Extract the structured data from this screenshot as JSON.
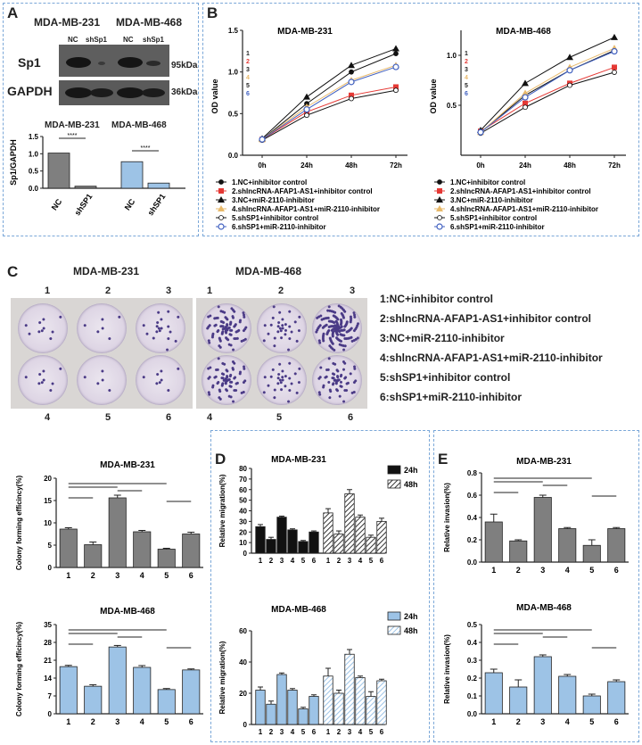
{
  "panels": {
    "A": "A",
    "B": "B",
    "C": "C",
    "D": "D",
    "E": "E"
  },
  "blot": {
    "cell_lines": [
      "MDA-MB-231",
      "MDA-MB-468"
    ],
    "lane_labels": [
      "NC",
      "shSp1",
      "NC",
      "shSp1"
    ],
    "rows": [
      "Sp1",
      "GAPDH"
    ],
    "sizes": [
      "95kDa",
      "36kDa"
    ]
  },
  "chart_data": [
    {
      "id": "a_bar",
      "type": "bar",
      "ylabel": "Sp1/GAPDH",
      "groups": [
        "MDA-MB-231",
        "MDA-MB-468"
      ],
      "categories": [
        "NC",
        "shSP1",
        "NC",
        "shSP1"
      ],
      "values": [
        1.02,
        0.06,
        0.77,
        0.15
      ],
      "ylim": [
        0,
        1.5
      ],
      "yticks": [
        "0.0",
        "0.5",
        "1.0",
        "1.5"
      ],
      "colors": [
        "#7f7f7f",
        "#7f7f7f",
        "#9dc3e6",
        "#9dc3e6"
      ],
      "sig": [
        "****",
        "****"
      ]
    },
    {
      "id": "b_231",
      "type": "line",
      "title": "MDA-MB-231",
      "ylabel": "OD value",
      "x": [
        "0h",
        "24h",
        "48h",
        "72h"
      ],
      "ylim": [
        0,
        1.5
      ],
      "yticks": [
        "0.0",
        "0.5",
        "1.0",
        "1.5"
      ],
      "series": [
        {
          "name": "1",
          "values": [
            0.19,
            0.62,
            1.0,
            1.22
          ]
        },
        {
          "name": "2",
          "values": [
            0.19,
            0.52,
            0.72,
            0.82
          ]
        },
        {
          "name": "3",
          "values": [
            0.2,
            0.7,
            1.08,
            1.28
          ]
        },
        {
          "name": "4",
          "values": [
            0.19,
            0.58,
            0.9,
            1.08
          ]
        },
        {
          "name": "5",
          "values": [
            0.18,
            0.48,
            0.68,
            0.78
          ]
        },
        {
          "name": "6",
          "values": [
            0.19,
            0.55,
            0.88,
            1.06
          ]
        }
      ]
    },
    {
      "id": "b_468",
      "type": "line",
      "title": "MDA-MB-468",
      "ylabel": "OD value",
      "x": [
        "0h",
        "24h",
        "48h",
        "72h"
      ],
      "ylim": [
        0,
        1.25
      ],
      "yticks": [
        "0.5",
        "1.0"
      ],
      "series": [
        {
          "name": "1",
          "values": [
            0.23,
            0.6,
            0.85,
            1.05
          ]
        },
        {
          "name": "2",
          "values": [
            0.24,
            0.52,
            0.72,
            0.88
          ]
        },
        {
          "name": "3",
          "values": [
            0.25,
            0.72,
            0.98,
            1.18
          ]
        },
        {
          "name": "4",
          "values": [
            0.23,
            0.62,
            0.88,
            1.07
          ]
        },
        {
          "name": "5",
          "values": [
            0.22,
            0.48,
            0.7,
            0.83
          ]
        },
        {
          "name": "6",
          "values": [
            0.23,
            0.58,
            0.85,
            1.04
          ]
        }
      ]
    },
    {
      "id": "c_231",
      "type": "bar",
      "title": "MDA-MB-231",
      "ylabel": "Colony forming efficincy(%)",
      "categories": [
        "1",
        "2",
        "3",
        "4",
        "5",
        "6"
      ],
      "values": [
        8.6,
        5.1,
        15.6,
        8.0,
        4.1,
        7.5
      ],
      "errors": [
        0.3,
        0.6,
        0.6,
        0.3,
        0.2,
        0.4
      ],
      "ylim": [
        0,
        20
      ],
      "yticks": [
        "0",
        "5",
        "10",
        "15",
        "20"
      ]
    },
    {
      "id": "c_468",
      "type": "bar",
      "title": "MDA-MB-468",
      "ylabel": "Colony forming efficincy(%)",
      "categories": [
        "1",
        "2",
        "3",
        "4",
        "5",
        "6"
      ],
      "values": [
        18.5,
        10.8,
        26.2,
        18.2,
        9.5,
        17.2
      ],
      "errors": [
        0.5,
        0.6,
        0.6,
        0.7,
        0.4,
        0.4
      ],
      "ylim": [
        0,
        35
      ],
      "yticks": [
        "0",
        "7",
        "14",
        "21",
        "28",
        "35"
      ]
    },
    {
      "id": "d_231",
      "type": "bar",
      "title": "MDA-MB-231",
      "ylabel": "Relative migration(%)",
      "categories": [
        "1",
        "2",
        "3",
        "4",
        "5",
        "6"
      ],
      "series": [
        {
          "name": "24h",
          "values": [
            25,
            13,
            34,
            22,
            11,
            20
          ],
          "errors": [
            2,
            2,
            1,
            1,
            1,
            1
          ]
        },
        {
          "name": "48h",
          "values": [
            38,
            18,
            56,
            34,
            15,
            30
          ],
          "errors": [
            4,
            3,
            4,
            2,
            2,
            3
          ]
        }
      ],
      "ylim": [
        0,
        80
      ],
      "yticks": [
        "0",
        "10",
        "20",
        "30",
        "40",
        "50",
        "60",
        "70",
        "80"
      ]
    },
    {
      "id": "d_468",
      "type": "bar",
      "title": "MDA-MB-468",
      "ylabel": "Relative migration(%)",
      "categories": [
        "1",
        "2",
        "3",
        "4",
        "5",
        "6"
      ],
      "series": [
        {
          "name": "24h",
          "values": [
            22,
            13,
            32,
            22,
            10,
            18
          ],
          "errors": [
            2,
            2,
            1,
            1,
            1,
            1
          ]
        },
        {
          "name": "48h",
          "values": [
            31,
            20,
            45,
            30,
            18,
            28
          ],
          "errors": [
            5,
            2,
            3,
            1,
            3,
            1
          ]
        }
      ],
      "ylim": [
        0,
        60
      ],
      "yticks": [
        "0",
        "20",
        "40",
        "60"
      ]
    },
    {
      "id": "e_231",
      "type": "bar",
      "title": "MDA-MB-231",
      "ylabel": "Relative invasion(%)",
      "categories": [
        "1",
        "2",
        "3",
        "4",
        "5",
        "6"
      ],
      "values": [
        0.36,
        0.19,
        0.58,
        0.3,
        0.15,
        0.3
      ],
      "errors": [
        0.07,
        0.01,
        0.02,
        0.01,
        0.05,
        0.01
      ],
      "ylim": [
        0,
        0.8
      ],
      "yticks": [
        "0.0",
        "0.2",
        "0.4",
        "0.6",
        "0.8"
      ]
    },
    {
      "id": "e_468",
      "type": "bar",
      "title": "MDA-MB-468",
      "ylabel": "Relative invasion(%)",
      "categories": [
        "1",
        "2",
        "3",
        "4",
        "5",
        "6"
      ],
      "values": [
        0.23,
        0.15,
        0.32,
        0.21,
        0.1,
        0.18
      ],
      "errors": [
        0.02,
        0.04,
        0.01,
        0.01,
        0.01,
        0.01
      ],
      "ylim": [
        0,
        0.5
      ],
      "yticks": [
        "0.0",
        "0.1",
        "0.2",
        "0.3",
        "0.4",
        "0.5"
      ]
    }
  ],
  "b_legend": [
    "1.NC+inhibitor control",
    "2.shlncRNA-AFAP1-AS1+inhibitor control",
    "3.NC+miR-2110-inhibitor",
    "4.shlncRNA-AFAP1-AS1+miR-2110-inhibitor",
    "5.shSP1+inhibitor control",
    "6.shSP1+miR-2110-inhibitor"
  ],
  "c_titles": [
    "MDA-MB-231",
    "MDA-MB-468"
  ],
  "c_well_labels_top": [
    "1",
    "2",
    "3",
    "1",
    "2",
    "3"
  ],
  "c_well_labels_bottom": [
    "4",
    "5",
    "6",
    "4",
    "5",
    "6"
  ],
  "c_groups": [
    "1:NC+inhibitor control",
    "2:shlncRNA-AFAP1-AS1+inhibitor control",
    "3:NC+miR-2110-inhibitor",
    "4:shlncRNA-AFAP1-AS1+miR-2110-inhibitor",
    "5:shSP1+inhibitor control",
    "6:shSP1+miR-2110-inhibitor"
  ],
  "d_legend": [
    "24h",
    "48h"
  ],
  "colors": {
    "dark": "#666666",
    "blue": "#9dc3e6",
    "border": "#7aa7d8"
  }
}
